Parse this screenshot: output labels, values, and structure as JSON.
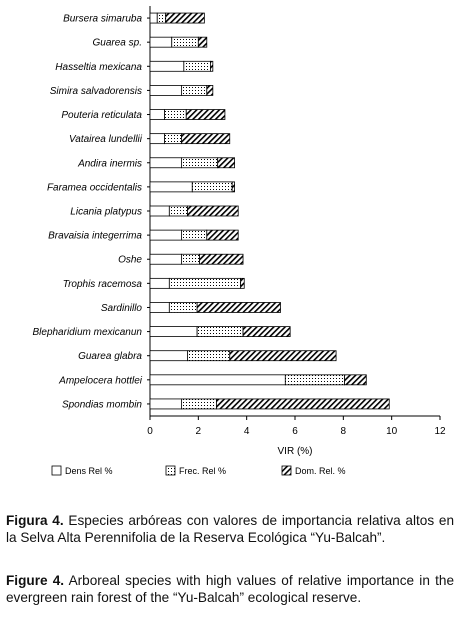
{
  "chart_data": {
    "type": "bar",
    "orientation": "horizontal",
    "stacked": true,
    "categories": [
      "Bursera simaruba",
      "Guarea sp.",
      "Hasseltia mexicana",
      "Simira salvadorensis",
      "Pouteria reticulata",
      "Vatairea lundellii",
      "Andira inermis",
      "Faramea occidentalis",
      "Licania platypus",
      "Bravaisia integerrima",
      "Oshe",
      "Trophis racemosa",
      "Sardinillo",
      "Blepharidium mexicanun",
      "Guarea glabra",
      "Ampelocera hottlei",
      "Spondias mombin"
    ],
    "series": [
      {
        "name": "Dens Rel %",
        "pattern": "white",
        "values": [
          0.3,
          0.9,
          1.4,
          1.3,
          0.6,
          0.6,
          1.3,
          1.75,
          0.8,
          1.3,
          1.3,
          0.8,
          0.8,
          1.95,
          1.55,
          5.6,
          1.3
        ]
      },
      {
        "name": "Frec. Rel %",
        "pattern": "dots",
        "values": [
          0.35,
          1.1,
          1.1,
          1.05,
          0.9,
          0.7,
          1.5,
          1.65,
          0.75,
          1.05,
          0.75,
          2.95,
          1.15,
          1.9,
          1.75,
          2.45,
          1.45
        ]
      },
      {
        "name": "Dom. Rel. %",
        "pattern": "hatch",
        "values": [
          1.6,
          0.35,
          0.1,
          0.25,
          1.6,
          2.0,
          0.7,
          0.1,
          2.1,
          1.3,
          1.8,
          0.15,
          3.45,
          1.95,
          4.4,
          0.9,
          7.15
        ]
      }
    ],
    "xlabel": "VIR (%)",
    "ylabel": "",
    "xlim": [
      0,
      12
    ],
    "xticks": [
      0,
      2,
      4,
      6,
      8,
      10,
      12
    ],
    "grid": false,
    "legend_position": "bottom"
  },
  "captions": {
    "es": {
      "label": "Figura 4.",
      "text": "Especies arbóreas con valores de importancia relativa altos en la Selva Alta Perennifolia de la Reserva Ecológica “Yu-Balcah”."
    },
    "en": {
      "label": "Figure 4.",
      "text": "Arboreal species with high values of relative importance in the evergreen rain forest of the “Yu-Balcah” ecological reserve."
    }
  }
}
